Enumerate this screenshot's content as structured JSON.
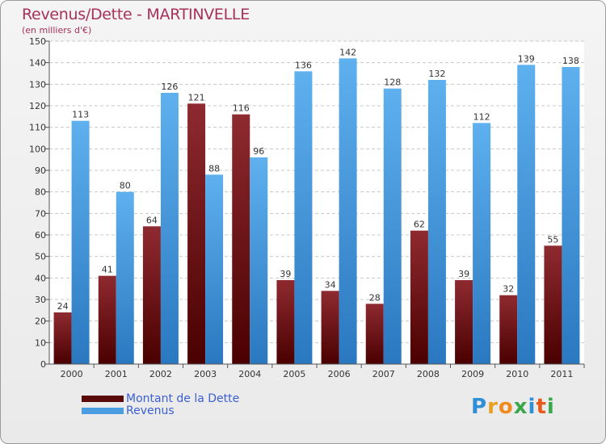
{
  "chart_data": {
    "type": "bar",
    "title": "Revenus/Dette - MARTINVELLE",
    "subtitle": "(en milliers d'€)",
    "categories": [
      "2000",
      "2001",
      "2002",
      "2003",
      "2004",
      "2005",
      "2006",
      "2007",
      "2008",
      "2009",
      "2010",
      "2011"
    ],
    "series": [
      {
        "name": "Montant de la Dette",
        "color": "#7a1a1a",
        "values": [
          24,
          41,
          64,
          121,
          116,
          39,
          34,
          28,
          62,
          39,
          32,
          55
        ]
      },
      {
        "name": "Revenus",
        "color": "#4a9de0",
        "values": [
          113,
          80,
          126,
          88,
          96,
          136,
          142,
          128,
          132,
          112,
          139,
          138
        ]
      }
    ],
    "ylim": [
      0,
      150
    ],
    "yticks": [
      0,
      10,
      20,
      30,
      40,
      50,
      60,
      70,
      80,
      90,
      100,
      110,
      120,
      130,
      140,
      150
    ],
    "grid": true,
    "legend_position": "bottom-left"
  },
  "logo": {
    "text": "Proxiti",
    "letters": [
      {
        "ch": "P",
        "color": "#2e8fd6"
      },
      {
        "ch": "r",
        "color": "#e8a020"
      },
      {
        "ch": "o",
        "color": "#f08a1c"
      },
      {
        "ch": "x",
        "color": "#3aa84a"
      },
      {
        "ch": "i",
        "color": "#2e8fd6"
      },
      {
        "ch": "t",
        "color": "#e85a1c"
      },
      {
        "ch": "i",
        "color": "#3aa84a"
      }
    ]
  }
}
